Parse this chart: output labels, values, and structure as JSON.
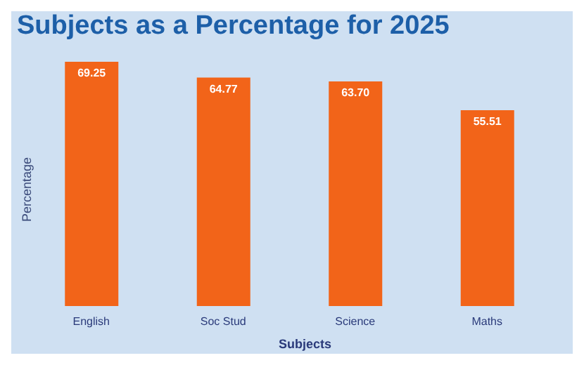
{
  "chart_data": {
    "type": "bar",
    "title": "Subjects as a Percentage for 2025",
    "xlabel": "Subjects",
    "ylabel": "Percentage",
    "categories": [
      "English",
      "Soc Stud",
      "Science",
      "Maths"
    ],
    "values": [
      69.25,
      64.77,
      63.7,
      55.51
    ],
    "value_labels": [
      "69.25",
      "64.77",
      "63.70",
      "55.51"
    ],
    "color": "#f26419"
  }
}
